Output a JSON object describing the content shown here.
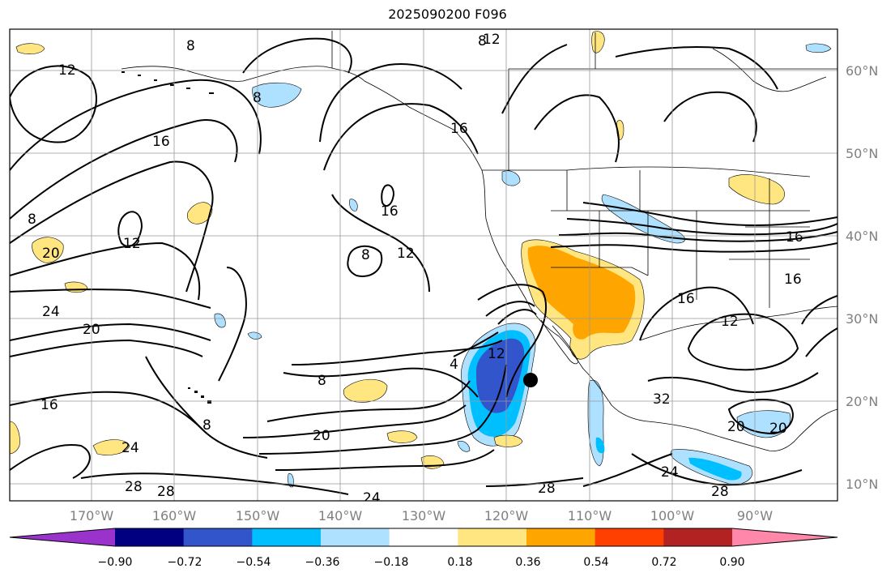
{
  "title": "2025090200 F096",
  "map": {
    "lon_ticks": [
      "170°W",
      "160°W",
      "150°W",
      "140°W",
      "130°W",
      "120°W",
      "110°W",
      "100°W",
      "90°W"
    ],
    "lat_ticks": [
      "60°N",
      "50°N",
      "40°N",
      "30°N",
      "20°N",
      "10°N"
    ],
    "grid": true,
    "marker": "storm-center-dot"
  },
  "colorbar": {
    "ticks": [
      "−0.90",
      "−0.72",
      "−0.54",
      "−0.36",
      "−0.18",
      "0.18",
      "0.36",
      "0.54",
      "0.72",
      "0.90"
    ],
    "colors": [
      "#9933cc",
      "#000080",
      "#3355cc",
      "#00bfff",
      "#aee0ff",
      "#ffffff",
      "#ffe680",
      "#ffa500",
      "#ff4000",
      "#b22222",
      "#ff88aa"
    ]
  },
  "contour_labels": [
    "8",
    "12",
    "8",
    "16",
    "8",
    "12",
    "16",
    "12",
    "8",
    "8",
    "16",
    "20",
    "12",
    "24",
    "20",
    "16",
    "8",
    "4",
    "12",
    "8",
    "16",
    "20",
    "24",
    "28",
    "28",
    "24",
    "28",
    "24",
    "28",
    "20",
    "20",
    "32",
    "16",
    "16",
    "12"
  ]
}
